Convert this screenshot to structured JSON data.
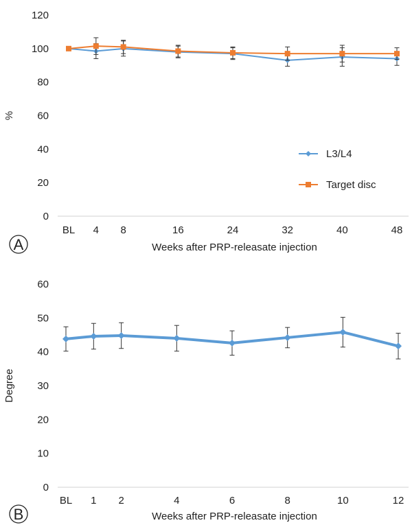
{
  "chart_data": [
    {
      "panel": "A",
      "type": "line",
      "categories": [
        "BL",
        "4",
        "8",
        "16",
        "24",
        "32",
        "40",
        "48"
      ],
      "category_x": [
        0,
        4,
        8,
        16,
        24,
        32,
        40,
        48
      ],
      "xlabel": "Weeks after PRP-releasate injection",
      "ylabel": "%",
      "ylim": [
        0,
        120
      ],
      "yticks": [
        0,
        20,
        40,
        60,
        80,
        100,
        120
      ],
      "legend": "center-right",
      "series": [
        {
          "name": "L3/L4",
          "color": "#5b9bd5",
          "marker": "diamond",
          "values": [
            100,
            98.5,
            100,
            98,
            97,
            93,
            95,
            94
          ],
          "err": [
            0,
            4.5,
            4.5,
            3.5,
            3.5,
            3.5,
            5.5,
            4
          ]
        },
        {
          "name": "Target disc",
          "color": "#ed7d31",
          "marker": "square",
          "values": [
            100,
            101.5,
            101,
            98.5,
            97.5,
            97,
            97,
            97
          ],
          "err": [
            0,
            5,
            4,
            3.5,
            3.5,
            4,
            5,
            3.5
          ]
        }
      ]
    },
    {
      "panel": "B",
      "type": "line",
      "categories": [
        "BL",
        "1",
        "2",
        "4",
        "6",
        "8",
        "10",
        "12"
      ],
      "category_x": [
        0,
        1,
        2,
        4,
        6,
        8,
        10,
        12
      ],
      "xlabel": "Weeks after PRP-releasate injection",
      "ylabel": "Degree",
      "ylim": [
        0,
        60
      ],
      "yticks": [
        0,
        10,
        20,
        30,
        40,
        50,
        60
      ],
      "series": [
        {
          "name": "",
          "color": "#5b9bd5",
          "marker": "diamond",
          "values": [
            43.8,
            44.6,
            44.8,
            44,
            42.6,
            44.2,
            45.8,
            41.7
          ],
          "err": [
            3.6,
            3.8,
            3.8,
            3.8,
            3.6,
            3,
            4.4,
            3.8
          ]
        }
      ]
    }
  ],
  "panel_labels": [
    "A",
    "B"
  ],
  "colors": {
    "axis": "#d9d9d9",
    "tick": "#222222"
  }
}
